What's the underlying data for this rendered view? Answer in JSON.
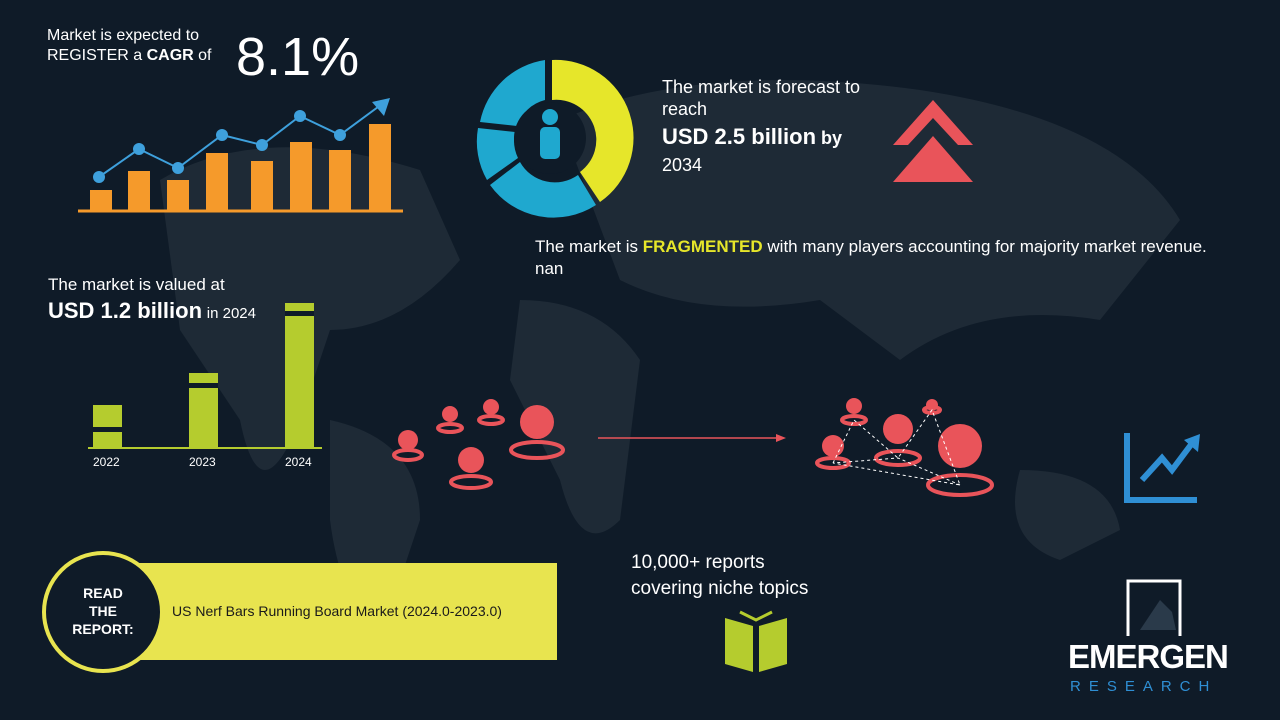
{
  "cagr": {
    "line1": "Market is expected to",
    "prefix": "REGISTER a",
    "bold": "CAGR",
    "suffix": "of",
    "value": "8.1%"
  },
  "forecast": {
    "lead": "The market is forecast to reach",
    "amount": "USD 2.5 billion",
    "by": "by",
    "year": "2034"
  },
  "fragmented": {
    "prefix": "The market is",
    "highlight": "FRAGMENTED",
    "suffix": "with many players accounting for majority market revenue. nan"
  },
  "valued": {
    "lead": "The market is valued at",
    "amount": "USD 1.2 billion",
    "suffix": "in 2024"
  },
  "years": [
    "2022",
    "2023",
    "2024"
  ],
  "reports": {
    "line1": "10,000+ reports",
    "line2": "covering niche topics"
  },
  "read": {
    "label_lines": [
      "READ",
      "THE",
      "REPORT:"
    ],
    "title": "US Nerf Bars Running Board Market (2024.0-2023.0)"
  },
  "logo": {
    "name": "EMERGEN",
    "tagline": "RESEARCH"
  }
}
